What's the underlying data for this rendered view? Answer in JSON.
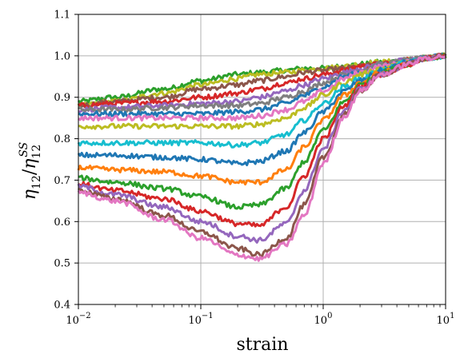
{
  "chart_data": {
    "type": "line",
    "xlabel": "strain",
    "ylabel": "η12/η12^SS",
    "ylabel_parts": {
      "main": "η",
      "main_sub": "12",
      "slash": "/",
      "den": "η",
      "den_sub": "12",
      "den_sup": "SS"
    },
    "xscale": "log",
    "xlim": [
      0.01,
      10
    ],
    "ylim": [
      0.4,
      1.1
    ],
    "grid": true,
    "xticks": [
      {
        "value": 0.01,
        "base": "10",
        "exp": "−2"
      },
      {
        "value": 0.1,
        "base": "10",
        "exp": "−1"
      },
      {
        "value": 1,
        "base": "10",
        "exp": "0"
      },
      {
        "value": 10,
        "base": "10",
        "exp": "1"
      }
    ],
    "yticks": [
      "0.4",
      "0.5",
      "0.6",
      "0.7",
      "0.8",
      "0.9",
      "1.0",
      "1.1"
    ],
    "palette": [
      "#1f77b4",
      "#ff7f0e",
      "#2ca02c",
      "#d62728",
      "#9467bd",
      "#8c564b",
      "#e377c2",
      "#7f7f7f",
      "#bcbd22",
      "#17becf"
    ],
    "x": [
      0.01,
      0.02,
      0.05,
      0.1,
      0.2,
      0.3,
      0.5,
      0.7,
      1,
      1.5,
      2,
      3,
      5,
      7,
      10
    ],
    "series": [
      {
        "color": "#2ca02c",
        "values": [
          0.89,
          0.9,
          0.92,
          0.94,
          0.955,
          0.96,
          0.965,
          0.97,
          0.97,
          0.975,
          0.98,
          0.985,
          0.99,
          0.995,
          1.0
        ]
      },
      {
        "color": "#bcbd22",
        "values": [
          0.88,
          0.89,
          0.91,
          0.93,
          0.945,
          0.955,
          0.96,
          0.965,
          0.97,
          0.975,
          0.98,
          0.985,
          0.99,
          0.995,
          1.0
        ]
      },
      {
        "color": "#8c564b",
        "values": [
          0.88,
          0.89,
          0.9,
          0.92,
          0.93,
          0.94,
          0.95,
          0.96,
          0.965,
          0.97,
          0.975,
          0.98,
          0.99,
          0.995,
          1.0
        ]
      },
      {
        "color": "#d62728",
        "values": [
          0.88,
          0.885,
          0.89,
          0.9,
          0.91,
          0.92,
          0.935,
          0.945,
          0.955,
          0.965,
          0.975,
          0.98,
          0.99,
          0.995,
          1.0
        ]
      },
      {
        "color": "#9467bd",
        "values": [
          0.87,
          0.875,
          0.88,
          0.885,
          0.89,
          0.9,
          0.915,
          0.93,
          0.945,
          0.96,
          0.97,
          0.98,
          0.99,
          0.995,
          1.0
        ]
      },
      {
        "color": "#7f7f7f",
        "values": [
          0.87,
          0.87,
          0.875,
          0.88,
          0.88,
          0.885,
          0.9,
          0.915,
          0.935,
          0.955,
          0.965,
          0.98,
          0.99,
          0.995,
          1.0
        ]
      },
      {
        "color": "#1f77b4",
        "values": [
          0.86,
          0.86,
          0.86,
          0.86,
          0.865,
          0.87,
          0.885,
          0.905,
          0.925,
          0.95,
          0.96,
          0.975,
          0.985,
          0.995,
          1.0
        ]
      },
      {
        "color": "#e377c2",
        "values": [
          0.85,
          0.85,
          0.85,
          0.85,
          0.85,
          0.855,
          0.87,
          0.89,
          0.915,
          0.945,
          0.96,
          0.975,
          0.985,
          0.995,
          1.0
        ]
      },
      {
        "color": "#bcbd22",
        "values": [
          0.83,
          0.83,
          0.83,
          0.83,
          0.83,
          0.835,
          0.85,
          0.875,
          0.905,
          0.935,
          0.955,
          0.97,
          0.985,
          0.995,
          1.0
        ]
      },
      {
        "color": "#17becf",
        "values": [
          0.79,
          0.79,
          0.79,
          0.79,
          0.785,
          0.79,
          0.81,
          0.845,
          0.885,
          0.925,
          0.945,
          0.965,
          0.985,
          0.995,
          1.0
        ]
      },
      {
        "color": "#1f77b4",
        "values": [
          0.76,
          0.76,
          0.755,
          0.75,
          0.74,
          0.745,
          0.77,
          0.815,
          0.865,
          0.915,
          0.94,
          0.965,
          0.985,
          0.995,
          1.0
        ]
      },
      {
        "color": "#ff7f0e",
        "values": [
          0.73,
          0.725,
          0.72,
          0.71,
          0.695,
          0.695,
          0.725,
          0.78,
          0.845,
          0.905,
          0.935,
          0.96,
          0.98,
          0.995,
          1.0
        ]
      },
      {
        "color": "#2ca02c",
        "values": [
          0.705,
          0.695,
          0.68,
          0.66,
          0.635,
          0.64,
          0.68,
          0.745,
          0.82,
          0.89,
          0.93,
          0.96,
          0.98,
          0.995,
          1.0
        ]
      },
      {
        "color": "#d62728",
        "values": [
          0.69,
          0.675,
          0.655,
          0.625,
          0.595,
          0.59,
          0.635,
          0.71,
          0.8,
          0.88,
          0.925,
          0.955,
          0.98,
          0.995,
          1.0
        ]
      },
      {
        "color": "#9467bd",
        "values": [
          0.685,
          0.665,
          0.635,
          0.6,
          0.565,
          0.555,
          0.595,
          0.675,
          0.775,
          0.87,
          0.92,
          0.955,
          0.98,
          0.995,
          1.0
        ]
      },
      {
        "color": "#8c564b",
        "values": [
          0.675,
          0.655,
          0.615,
          0.575,
          0.535,
          0.52,
          0.56,
          0.64,
          0.755,
          0.86,
          0.915,
          0.955,
          0.98,
          0.995,
          1.0
        ]
      },
      {
        "color": "#e377c2",
        "values": [
          0.67,
          0.65,
          0.605,
          0.56,
          0.52,
          0.51,
          0.545,
          0.615,
          0.74,
          0.855,
          0.915,
          0.955,
          0.98,
          0.995,
          1.0
        ]
      }
    ]
  }
}
